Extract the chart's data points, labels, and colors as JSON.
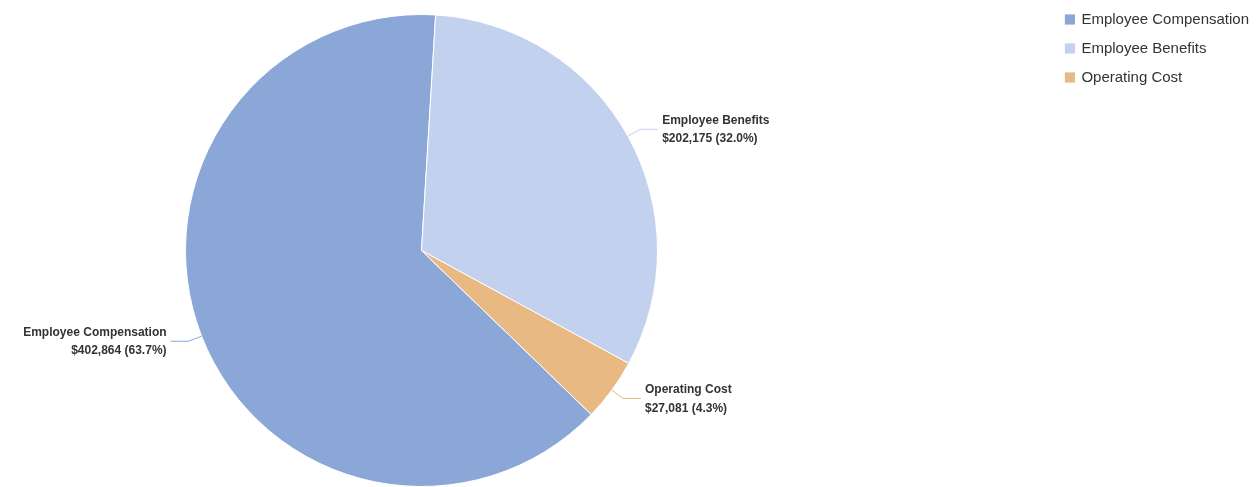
{
  "chart_data": {
    "type": "pie",
    "categories": [
      "Employee Compensation",
      "Employee Benefits",
      "Operating Cost"
    ],
    "values": [
      402864,
      202175,
      27081
    ],
    "colors": [
      "#8ba7d8",
      "#c2d2ee",
      "#e8b982"
    ],
    "value_labels": [
      "$402,864 (63.7%)",
      "$202,175 (32.0%)",
      "$27,081 (4.3%)"
    ],
    "legend": "top right"
  }
}
